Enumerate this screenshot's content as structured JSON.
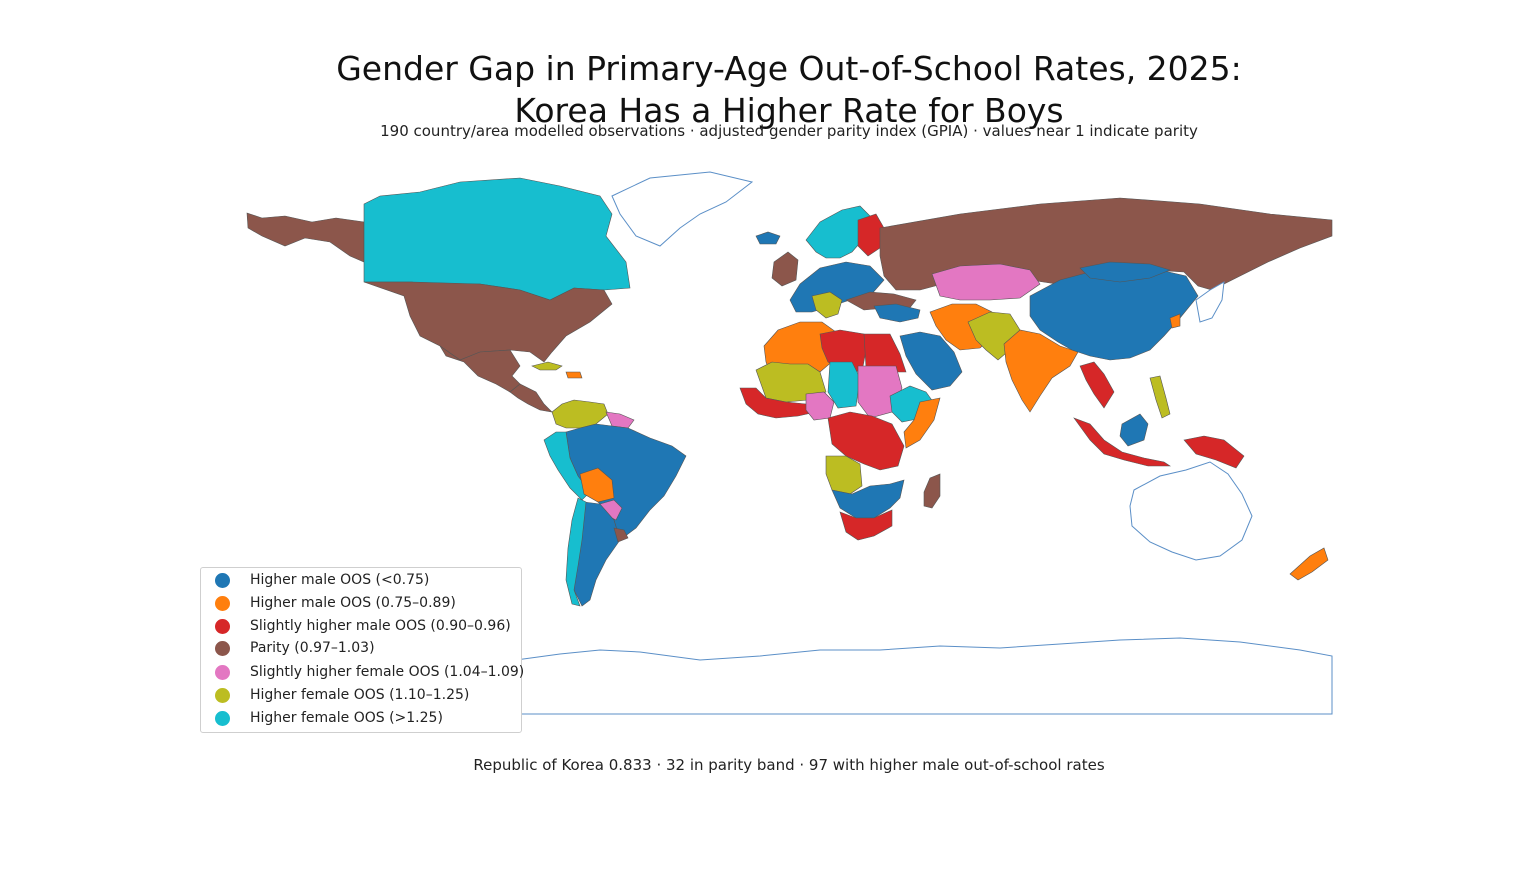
{
  "title_line1": "Gender Gap in Primary-Age Out-of-School Rates, 2025:",
  "title_line2": "Korea Has a Higher Rate for Boys",
  "subtitle": "190 country/area modelled observations · adjusted gender parity index (GPIA) · values near 1 indicate parity",
  "legend": [
    {
      "label": "Higher male OOS (<0.75)",
      "color": "#1f77b4"
    },
    {
      "label": "Higher male OOS (0.75–0.89)",
      "color": "#ff7f0e"
    },
    {
      "label": "Slightly higher male OOS (0.90–0.96)",
      "color": "#d62728"
    },
    {
      "label": "Parity (0.97–1.03)",
      "color": "#8c564b"
    },
    {
      "label": "Slightly higher female OOS (1.04–1.09)",
      "color": "#e377c2"
    },
    {
      "label": "Higher female OOS (1.10–1.25)",
      "color": "#bcbd22"
    },
    {
      "label": "Higher female OOS (>1.25)",
      "color": "#17becf"
    }
  ],
  "footer": "Republic of Korea 0.833 · 32 in parity band · 97 with higher male out-of-school rates",
  "colors": {
    "no_data_outline": "#5b8fc7",
    "border": "#555555"
  },
  "regions": [
    {
      "name": "Alaska (United States)",
      "band": 3
    },
    {
      "name": "Canada",
      "band": 6
    },
    {
      "name": "Greenland",
      "band": -1
    },
    {
      "name": "United States",
      "band": 3
    },
    {
      "name": "Mexico",
      "band": 3
    },
    {
      "name": "Central America",
      "band": 3
    },
    {
      "name": "Cuba",
      "band": 5
    },
    {
      "name": "Caribbean",
      "band": 1
    },
    {
      "name": "Colombia / Venezuela",
      "band": 5
    },
    {
      "name": "Guyana",
      "band": 4
    },
    {
      "name": "Brazil",
      "band": 0
    },
    {
      "name": "Peru",
      "band": 6
    },
    {
      "name": "Bolivia",
      "band": 1
    },
    {
      "name": "Paraguay",
      "band": 4
    },
    {
      "name": "Argentina",
      "band": 0
    },
    {
      "name": "Chile",
      "band": 6
    },
    {
      "name": "Uruguay",
      "band": 3
    },
    {
      "name": "Iceland",
      "band": 0
    },
    {
      "name": "Scandinavia",
      "band": 6
    },
    {
      "name": "Finland",
      "band": 2
    },
    {
      "name": "United Kingdom / Ireland",
      "band": 3
    },
    {
      "name": "Western Europe",
      "band": 0
    },
    {
      "name": "Italy",
      "band": 5
    },
    {
      "name": "Eastern Europe",
      "band": 3
    },
    {
      "name": "Russia",
      "band": 3
    },
    {
      "name": "Turkey",
      "band": 0
    },
    {
      "name": "Caucasus / Central Asia",
      "band": 4
    },
    {
      "name": "Morocco / Algeria",
      "band": 1
    },
    {
      "name": "Libya",
      "band": 2
    },
    {
      "name": "Egypt",
      "band": 2
    },
    {
      "name": "Mali / Niger",
      "band": 5
    },
    {
      "name": "Chad",
      "band": 6
    },
    {
      "name": "Sudan",
      "band": 4
    },
    {
      "name": "West Africa coast",
      "band": 2
    },
    {
      "name": "Nigeria",
      "band": 4
    },
    {
      "name": "Ethiopia",
      "band": 6
    },
    {
      "name": "Somalia",
      "band": 1
    },
    {
      "name": "Central Africa",
      "band": 2
    },
    {
      "name": "Angola",
      "band": 5
    },
    {
      "name": "Southern Africa",
      "band": 0
    },
    {
      "name": "South Africa",
      "band": 2
    },
    {
      "name": "Madagascar",
      "band": 3
    },
    {
      "name": "Saudi Arabia",
      "band": 0
    },
    {
      "name": "Iran",
      "band": 1
    },
    {
      "name": "Pakistan",
      "band": 5
    },
    {
      "name": "India",
      "band": 1
    },
    {
      "name": "China",
      "band": 0
    },
    {
      "name": "Mongolia",
      "band": 0
    },
    {
      "name": "Republic of Korea",
      "band": 1
    },
    {
      "name": "Southeast Asia",
      "band": 2
    },
    {
      "name": "Philippines",
      "band": 5
    },
    {
      "name": "Indonesia",
      "band": 2
    },
    {
      "name": "Borneo",
      "band": 0
    },
    {
      "name": "Papua New Guinea",
      "band": 2
    },
    {
      "name": "Australia",
      "band": -1
    },
    {
      "name": "New Zealand",
      "band": 1
    },
    {
      "name": "Antarctica",
      "band": -1
    },
    {
      "name": "Japan",
      "band": -1
    }
  ]
}
